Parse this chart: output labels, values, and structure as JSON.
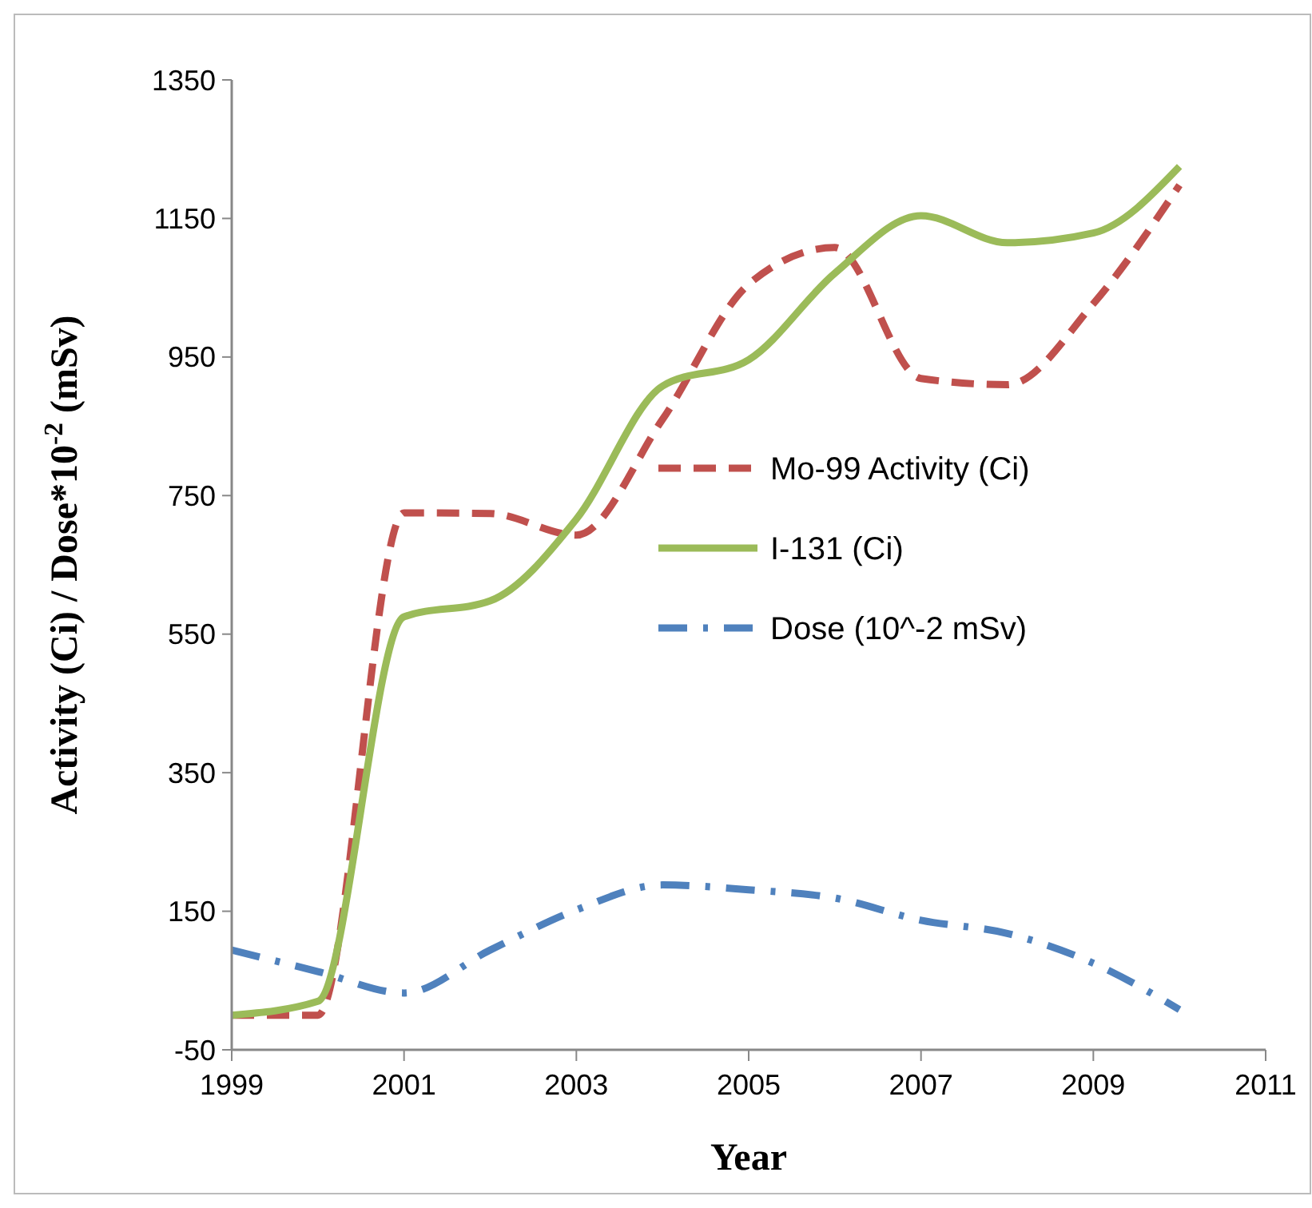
{
  "chart_data": {
    "type": "line",
    "xlabel": "Year",
    "ylabel": "Activity (Ci) / Dose*10$^{-2}$ (mSv)",
    "x": [
      1999,
      2000,
      2001,
      2002,
      2003,
      2004,
      2005,
      2006,
      2007,
      2008,
      2009,
      2010
    ],
    "series": [
      {
        "name": "Mo-99 Activity (Ci)",
        "color": "#c0504d",
        "line_style": "dashed",
        "values": [
          0,
          0,
          725,
          724,
          693,
          860,
          1055,
          1108,
          919,
          910,
          1027,
          1198
        ]
      },
      {
        "name": "I-131 (Ci)",
        "color": "#9bbb59",
        "line_style": "solid",
        "values": [
          0,
          20,
          575,
          598,
          716,
          908,
          946,
          1071,
          1154,
          1115,
          1129,
          1225
        ]
      },
      {
        "name": "Dose (10^-2 mSv)",
        "color": "#4f81bd",
        "line_style": "dashdot",
        "values": [
          94,
          63,
          32,
          94,
          152,
          188,
          181,
          169,
          137,
          118,
          75,
          8
        ]
      }
    ],
    "xlim": [
      1999,
      2011
    ],
    "xticks": [
      1999,
      2001,
      2003,
      2005,
      2007,
      2009,
      2011
    ],
    "ylim": [
      -50,
      1350
    ],
    "yticks": [
      -50,
      150,
      350,
      550,
      750,
      950,
      1150,
      1350
    ],
    "grid": false,
    "legend": "right",
    "marker": "none"
  }
}
